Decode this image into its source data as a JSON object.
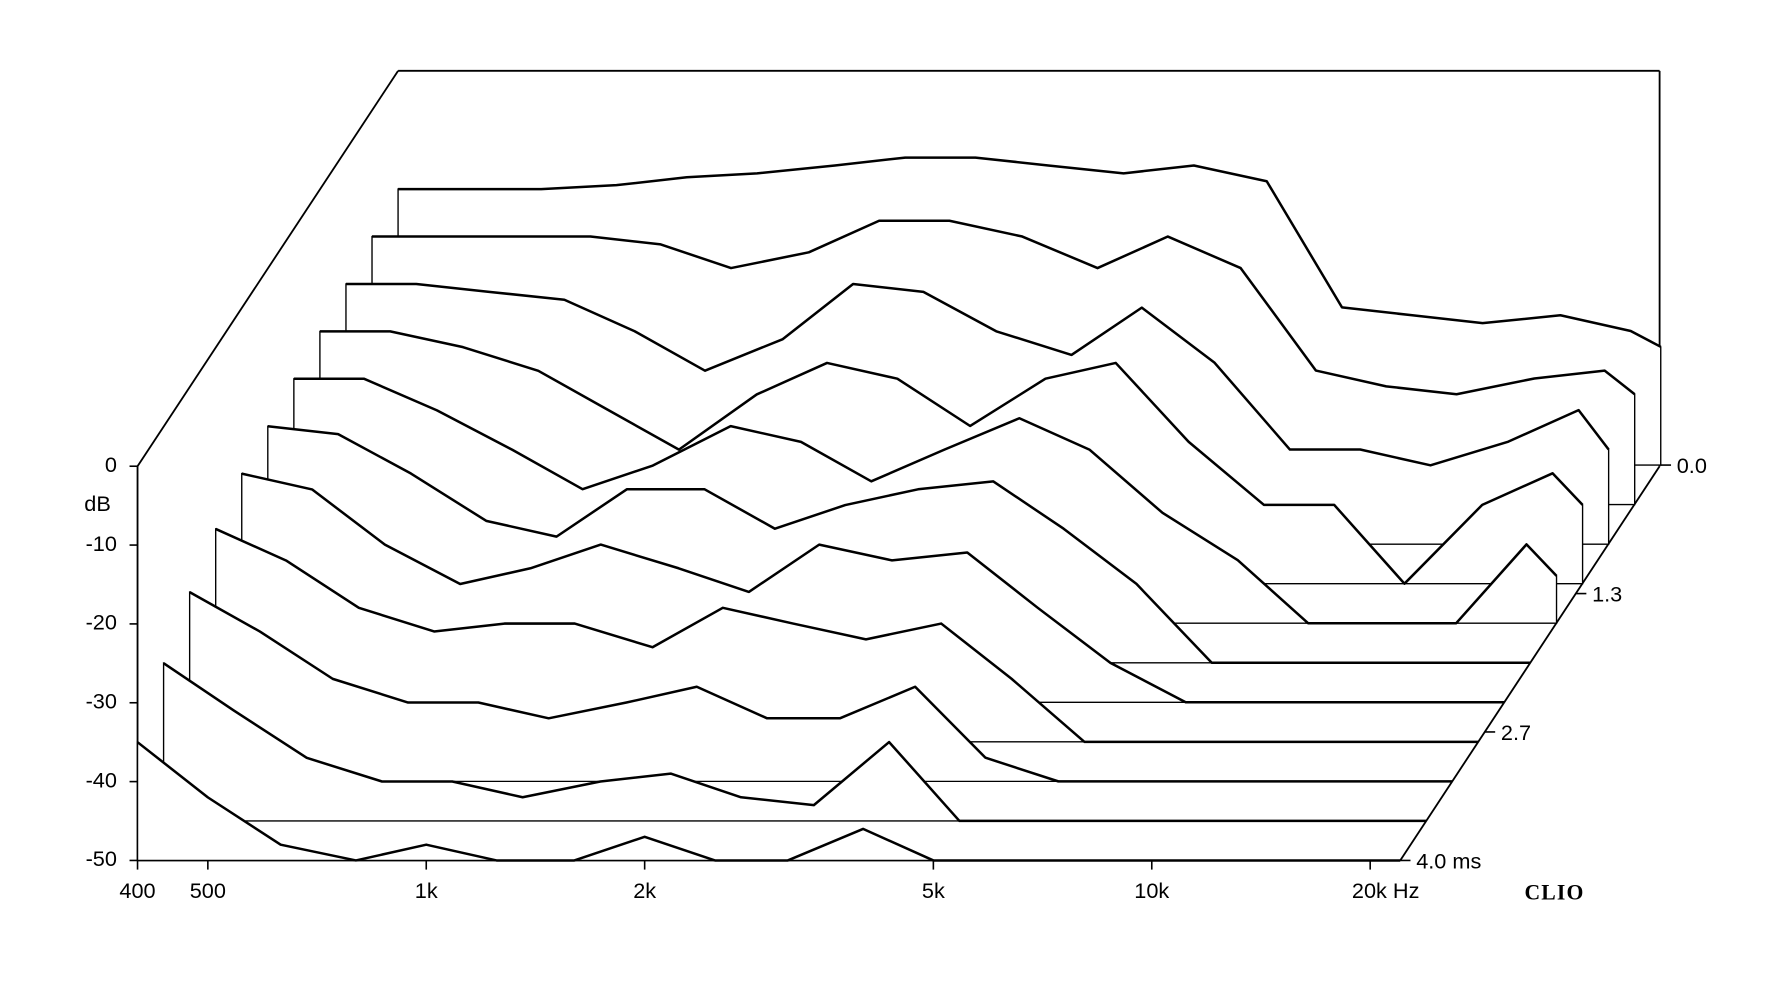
{
  "chart_data": {
    "type": "waterfall",
    "y_label": "dB",
    "brand": "CLIO",
    "color": "#000000",
    "log_x": true,
    "x": [
      400,
      500,
      630,
      800,
      1000,
      1250,
      1600,
      2000,
      2500,
      3150,
      4000,
      5000,
      6300,
      8000,
      10000,
      12500,
      16000,
      20000,
      22000
    ],
    "z": [
      0,
      0.4,
      0.8,
      1.2,
      1.6,
      2.0,
      2.4,
      2.8,
      3.2,
      3.6,
      4.0
    ],
    "series": [
      {
        "values": [
          -15,
          -15,
          -15,
          -14.5,
          -13.5,
          -13,
          -12,
          -11,
          -11,
          -12,
          -13,
          -12,
          -14,
          -30,
          -31,
          -32,
          -31,
          -33,
          -35
        ]
      },
      {
        "values": [
          -16,
          -16,
          -16,
          -16,
          -17,
          -20,
          -18,
          -14,
          -14,
          -16,
          -20,
          -16,
          -20,
          -33,
          -35,
          -36,
          -34,
          -33,
          -36
        ]
      },
      {
        "values": [
          -17,
          -17,
          -18,
          -19,
          -23,
          -28,
          -24,
          -17,
          -18,
          -23,
          -26,
          -20,
          -27,
          -38,
          -38,
          -40,
          -37,
          -33,
          -38
        ]
      },
      {
        "values": [
          -18,
          -18,
          -20,
          -23,
          -28,
          -33,
          -26,
          -22,
          -24,
          -30,
          -24,
          -22,
          -32,
          -40,
          -40,
          -50,
          -40,
          -36,
          -40
        ]
      },
      {
        "values": [
          -19,
          -19,
          -23,
          -28,
          -33,
          -30,
          -25,
          -27,
          -32,
          -28,
          -24,
          -28,
          -36,
          -42,
          -50,
          -50,
          -50,
          -40,
          -44
        ]
      },
      {
        "values": [
          -20,
          -21,
          -26,
          -32,
          -34,
          -28,
          -28,
          -33,
          -30,
          -28,
          -27,
          -33,
          -40,
          -50,
          -50,
          -50,
          -50,
          -50,
          -50
        ]
      },
      {
        "values": [
          -21,
          -23,
          -30,
          -35,
          -33,
          -30,
          -33,
          -36,
          -30,
          -32,
          -31,
          -38,
          -45,
          -50,
          -50,
          -50,
          -50,
          -50,
          -50
        ]
      },
      {
        "values": [
          -23,
          -27,
          -33,
          -36,
          -35,
          -35,
          -38,
          -33,
          -35,
          -37,
          -35,
          -42,
          -50,
          -50,
          -50,
          -50,
          -50,
          -50,
          -50
        ]
      },
      {
        "values": [
          -26,
          -31,
          -37,
          -40,
          -40,
          -42,
          -40,
          -38,
          -42,
          -42,
          -38,
          -47,
          -50,
          -50,
          -50,
          -50,
          -50,
          -50,
          -50
        ]
      },
      {
        "values": [
          -30,
          -36,
          -42,
          -45,
          -45,
          -47,
          -45,
          -44,
          -47,
          -48,
          -40,
          -50,
          -50,
          -50,
          -50,
          -50,
          -50,
          -50,
          -50
        ]
      },
      {
        "values": [
          -35,
          -42,
          -48,
          -50,
          -48,
          -50,
          -50,
          -47,
          -50,
          -50,
          -46,
          -50,
          -50,
          -50,
          -50,
          -50,
          -50,
          -50,
          -50
        ]
      }
    ],
    "xlim": [
      400,
      22000
    ],
    "xticks": [
      400,
      500,
      {
        "value": 1000,
        "label": "1k"
      },
      {
        "value": 2000,
        "label": "2k"
      },
      {
        "value": 5000,
        "label": "5k"
      },
      {
        "value": 10000,
        "label": "10k"
      },
      {
        "value": 20000,
        "label": "20k Hz"
      }
    ],
    "ylim": [
      -50,
      0
    ],
    "yticks": [
      0,
      -10,
      -20,
      -30,
      -40,
      -50
    ],
    "zlim": [
      0,
      4
    ],
    "zticks": [
      {
        "value": 0,
        "label": "0.0"
      },
      1.3,
      2.7,
      {
        "value": 4,
        "label": "4.0 ms"
      }
    ]
  }
}
